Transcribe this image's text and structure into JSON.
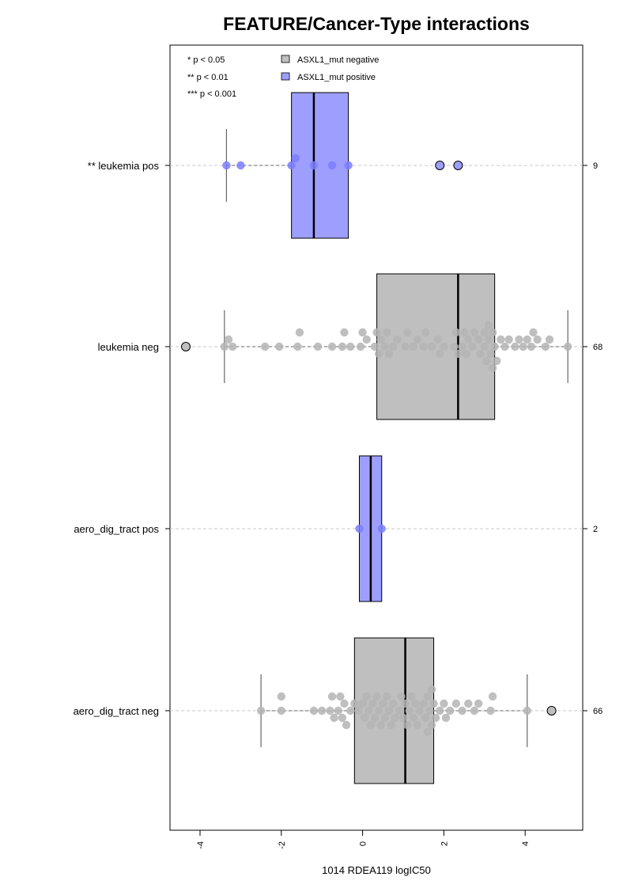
{
  "chart_data": {
    "type": "boxplot",
    "title": "FEATURE/Cancer-Type interactions",
    "xlabel": "1014 RDEA119 logIC50",
    "xlim": [
      -4.8,
      5.4
    ],
    "xticks": [
      -4,
      -2,
      0,
      2,
      4
    ],
    "xtick_labels": [
      "-4",
      "-2",
      "0",
      "2",
      "4"
    ],
    "orientation": "horizontal",
    "significance_legend": [
      "* p < 0.05",
      "** p < 0.01",
      "*** p < 0.001"
    ],
    "legend": [
      {
        "label": "ASXL1_mut negative",
        "color": "#bfbfbf"
      },
      {
        "label": "ASXL1_mut positive",
        "color": "#9e9eff"
      }
    ],
    "colors": {
      "negative_box": "#bfbfbf",
      "positive_box": "#9e9eff",
      "negative_point": "#b4b4b4",
      "positive_point": "#7d7dff"
    },
    "groups": [
      {
        "label": "** leukemia pos",
        "count": "9",
        "mutation": "positive",
        "stats": {
          "whisker_low": -3.35,
          "q1": -1.75,
          "median": -1.2,
          "q3": -0.35,
          "whisker_high": -0.35
        },
        "outliers": [
          1.9,
          2.35
        ],
        "points": [
          -3.35,
          -3.0,
          -1.75,
          -1.65,
          -1.2,
          -0.75,
          -0.35,
          1.9,
          2.35
        ]
      },
      {
        "label": "leukemia neg",
        "count": "68",
        "mutation": "negative",
        "stats": {
          "whisker_low": -3.4,
          "q1": 0.35,
          "median": 2.35,
          "q3": 3.25,
          "whisker_high": 5.05
        },
        "outliers": [
          -4.35
        ],
        "points": [
          -3.4,
          -3.3,
          -3.2,
          -2.4,
          -2.05,
          -1.6,
          -1.55,
          -1.1,
          -0.75,
          -0.5,
          -0.45,
          -0.3,
          -0.05,
          0.0,
          0.1,
          0.3,
          0.35,
          0.4,
          0.45,
          0.6,
          0.65,
          0.75,
          0.85,
          1.05,
          1.1,
          1.25,
          1.35,
          1.55,
          1.7,
          1.85,
          1.9,
          2.25,
          2.3,
          2.35,
          2.45,
          2.5,
          2.55,
          2.6,
          2.7,
          2.85,
          2.9,
          3.0,
          3.05,
          3.1,
          3.15,
          3.2,
          3.25,
          3.3,
          3.4,
          3.5,
          3.6,
          3.75,
          3.85,
          3.95,
          4.05,
          4.15,
          4.2,
          4.3,
          4.5,
          4.6,
          5.05,
          2.0,
          1.5,
          0.55,
          2.75,
          3.0,
          3.1,
          3.2
        ]
      },
      {
        "label": "aero_dig_tract pos",
        "count": "2",
        "mutation": "positive",
        "stats": {
          "whisker_low": -0.08,
          "q1": -0.08,
          "median": 0.2,
          "q3": 0.47,
          "whisker_high": 0.47
        },
        "outliers": [],
        "points": [
          -0.08,
          0.47
        ]
      },
      {
        "label": "aero_dig_tract neg",
        "count": "66",
        "mutation": "negative",
        "stats": {
          "whisker_low": -2.5,
          "q1": -0.2,
          "median": 1.05,
          "q3": 1.75,
          "whisker_high": 4.05
        },
        "outliers": [
          4.65
        ],
        "points": [
          -2.5,
          -2.0,
          -2.0,
          -1.2,
          -1.0,
          -0.8,
          -0.75,
          -0.7,
          -0.6,
          -0.55,
          -0.5,
          -0.45,
          -0.4,
          -0.3,
          -0.2,
          -0.1,
          0.0,
          0.05,
          0.1,
          0.15,
          0.2,
          0.25,
          0.3,
          0.35,
          0.45,
          0.5,
          0.55,
          0.6,
          0.65,
          0.8,
          0.95,
          1.0,
          1.05,
          1.1,
          1.15,
          1.2,
          1.3,
          1.4,
          1.5,
          1.55,
          1.6,
          1.65,
          1.7,
          1.75,
          1.8,
          1.9,
          2.0,
          2.05,
          2.15,
          2.3,
          2.45,
          2.6,
          2.75,
          2.85,
          3.15,
          3.2,
          4.05,
          4.65,
          1.25,
          0.75,
          1.35,
          0.9,
          1.7,
          1.6,
          0.4,
          0.7
        ]
      }
    ]
  }
}
